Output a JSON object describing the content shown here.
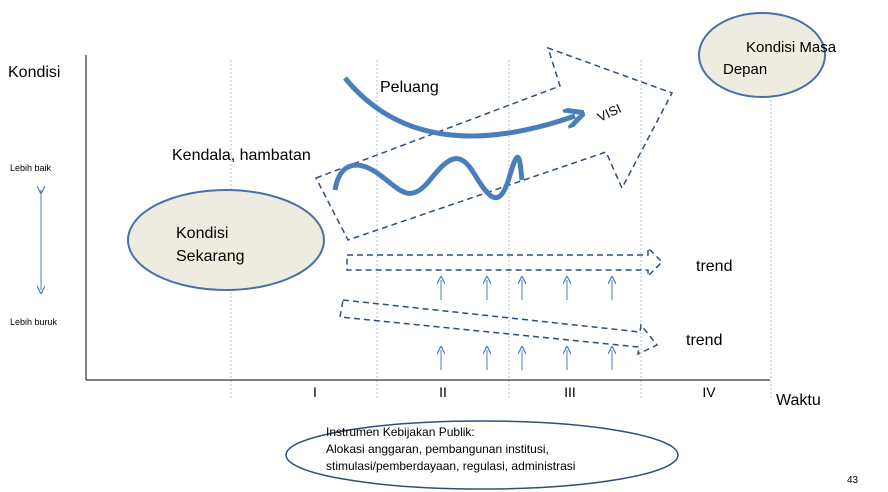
{
  "axes": {
    "y_label": "Kondisi",
    "x_label": "Waktu",
    "better": "Lebih baik",
    "worse": "Lebih buruk"
  },
  "phases": [
    "I",
    "II",
    "III",
    "IV"
  ],
  "current": {
    "lines": [
      "Kondisi",
      "Sekarang"
    ]
  },
  "future": {
    "lines": [
      "Kondisi Masa",
      "Depan"
    ]
  },
  "labels": {
    "opportunity": "Peluang",
    "obstacles": "Kendala, hambatan",
    "vision": "VISI"
  },
  "trends": [
    "trend",
    "trend"
  ],
  "instruments": {
    "lines": [
      "Instrumen Kebijakan Publik:",
      "Alokasi anggaran, pembangunan institusi,",
      "stimulasi/pemberdayaan, regulasi, administrasi"
    ]
  },
  "page_number": "43"
}
